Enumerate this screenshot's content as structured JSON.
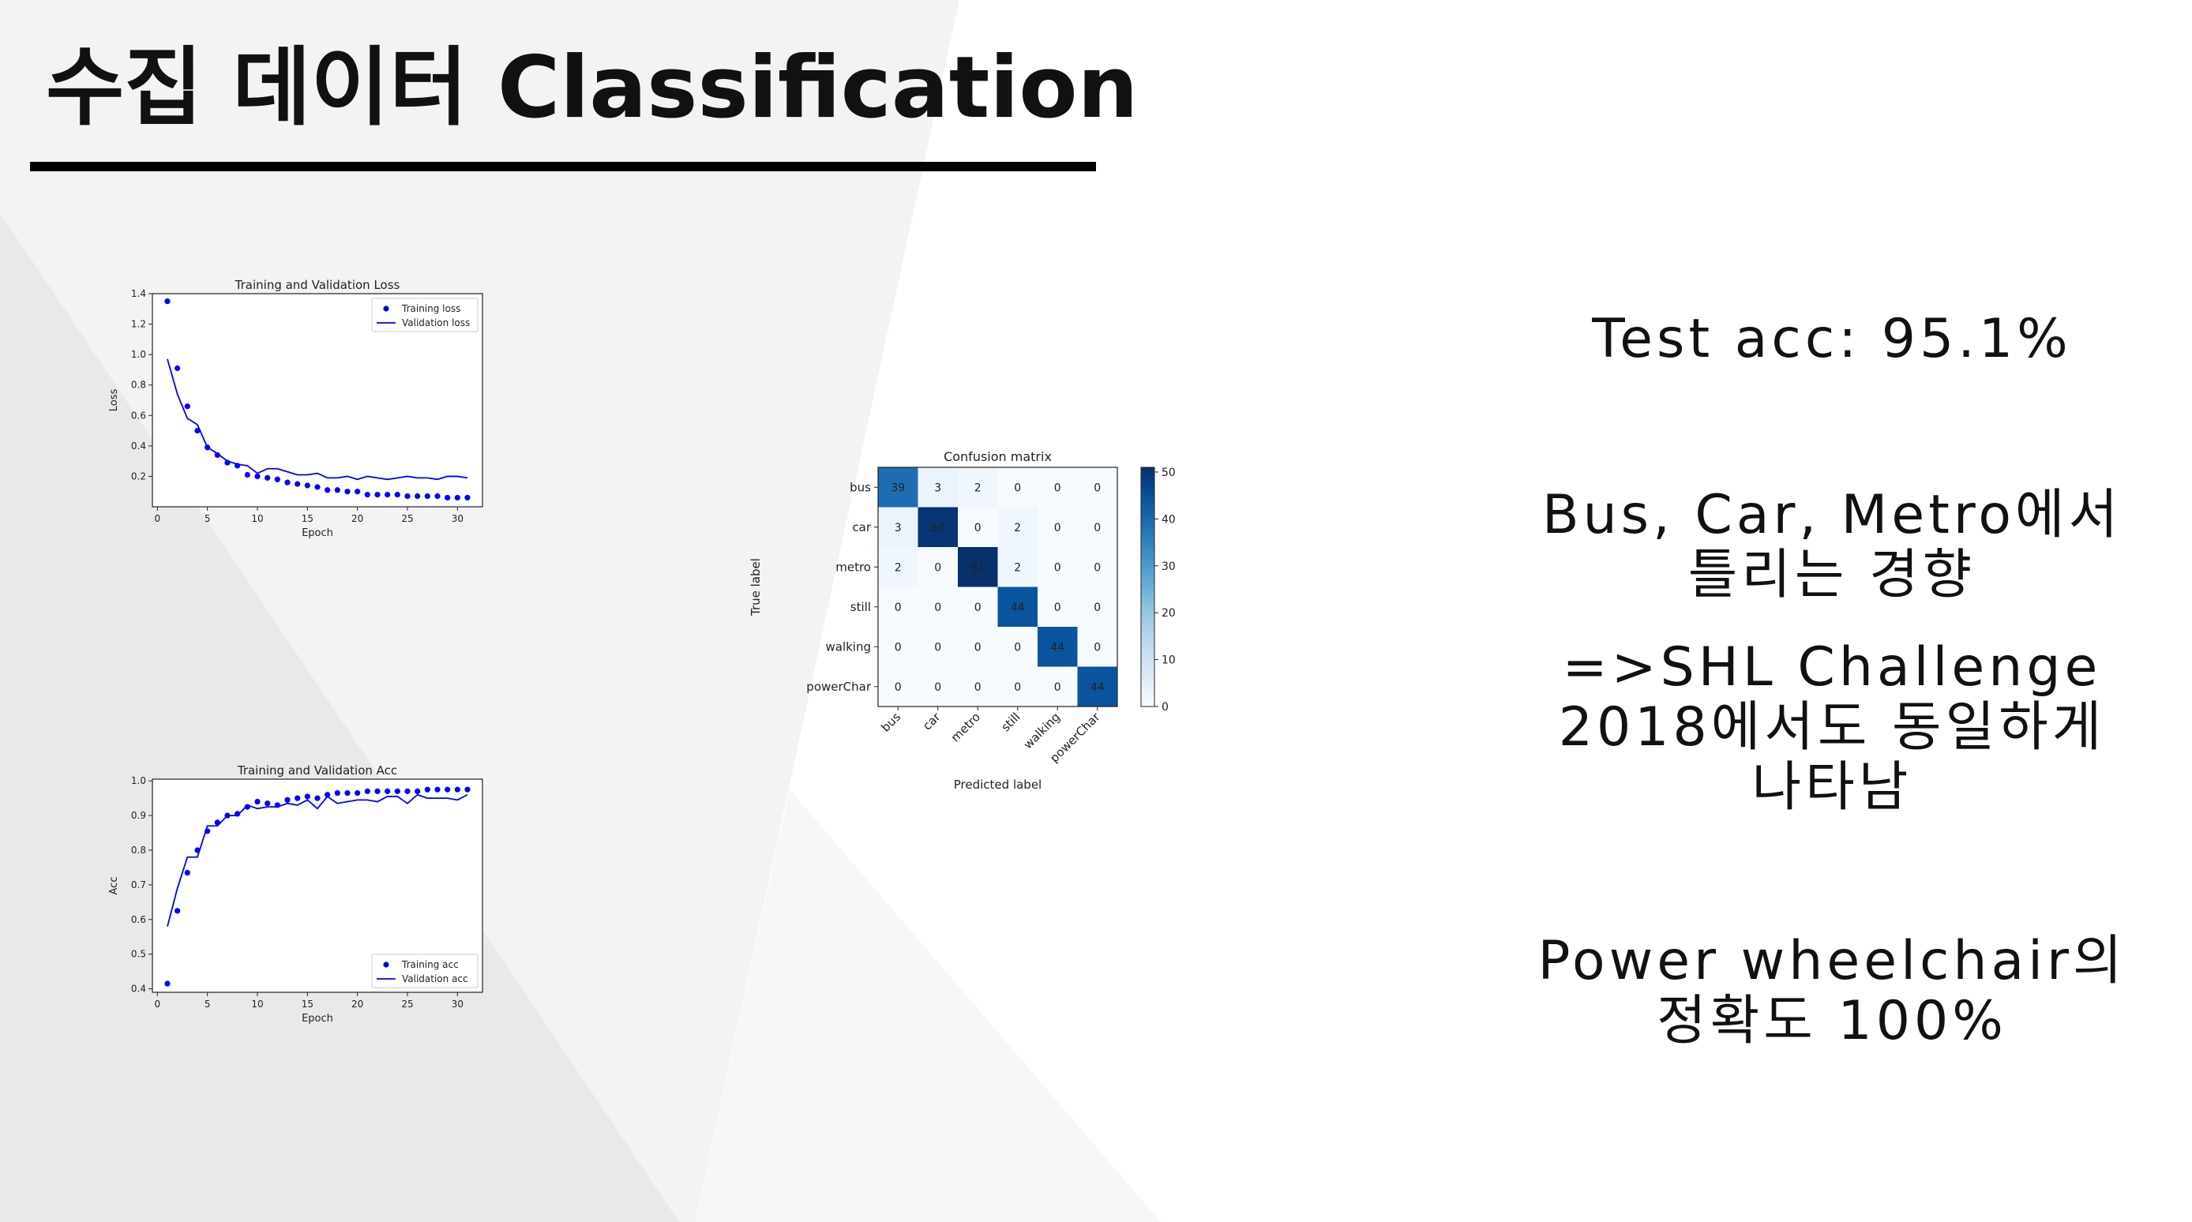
{
  "slide": {
    "title": "수집 데이터 Classification",
    "colors": {
      "background": "#ffffff",
      "panel_shade": "#ececec",
      "rule": "#000000",
      "series": "#0000ff"
    }
  },
  "notes": {
    "test_acc": "Test acc: 95.1%",
    "bus_line1": "Bus, Car, Metro에서",
    "bus_line2": "틀리는 경향",
    "shl_line1": "=>SHL Challenge",
    "shl_line2": "2018에서도 동일하게",
    "shl_line3": "나타남",
    "power_line1": "Power wheelchair의",
    "power_line2": "정확도 100%"
  },
  "chart_data": [
    {
      "type": "line",
      "title": "Training and Validation Loss",
      "xlabel": "Epoch",
      "ylabel": "Loss",
      "xlim": [
        -0.5,
        32.5
      ],
      "ylim": [
        0.0,
        1.4
      ],
      "xticks": [
        0,
        5,
        10,
        15,
        20,
        25,
        30
      ],
      "yticks": [
        0.2,
        0.4,
        0.6,
        0.8,
        1.0,
        1.2,
        1.4
      ],
      "ytick_labels": [
        "0.2",
        "0.4",
        "0.6",
        "0.8",
        "1.0",
        "1.2",
        "1.4"
      ],
      "legend_position": "top-right",
      "x": [
        1,
        2,
        3,
        4,
        5,
        6,
        7,
        8,
        9,
        10,
        11,
        12,
        13,
        14,
        15,
        16,
        17,
        18,
        19,
        20,
        21,
        22,
        23,
        24,
        25,
        26,
        27,
        28,
        29,
        30,
        31
      ],
      "series": [
        {
          "name": "Training loss",
          "style": "dots",
          "color": "#0000ff",
          "values": [
            1.35,
            0.91,
            0.66,
            0.5,
            0.39,
            0.34,
            0.29,
            0.27,
            0.21,
            0.2,
            0.19,
            0.18,
            0.16,
            0.15,
            0.14,
            0.13,
            0.11,
            0.11,
            0.1,
            0.1,
            0.08,
            0.08,
            0.08,
            0.08,
            0.07,
            0.07,
            0.07,
            0.07,
            0.06,
            0.06,
            0.06
          ]
        },
        {
          "name": "Validation loss",
          "style": "line",
          "color": "#0000ff",
          "values": [
            0.97,
            0.74,
            0.58,
            0.54,
            0.39,
            0.35,
            0.3,
            0.28,
            0.27,
            0.22,
            0.25,
            0.25,
            0.23,
            0.21,
            0.21,
            0.22,
            0.19,
            0.19,
            0.2,
            0.18,
            0.2,
            0.19,
            0.18,
            0.19,
            0.2,
            0.19,
            0.19,
            0.18,
            0.2,
            0.2,
            0.19
          ]
        }
      ]
    },
    {
      "type": "line",
      "title": "Training and Validation Acc",
      "xlabel": "Epoch",
      "ylabel": "Acc",
      "xlim": [
        -0.5,
        32.5
      ],
      "ylim": [
        0.39,
        1.005
      ],
      "xticks": [
        0,
        5,
        10,
        15,
        20,
        25,
        30
      ],
      "yticks": [
        0.4,
        0.5,
        0.6,
        0.7,
        0.8,
        0.9,
        1.0
      ],
      "ytick_labels": [
        "0.4",
        "0.5",
        "0.6",
        "0.7",
        "0.8",
        "0.9",
        "1.0"
      ],
      "legend_position": "bottom-right",
      "x": [
        1,
        2,
        3,
        4,
        5,
        6,
        7,
        8,
        9,
        10,
        11,
        12,
        13,
        14,
        15,
        16,
        17,
        18,
        19,
        20,
        21,
        22,
        23,
        24,
        25,
        26,
        27,
        28,
        29,
        30,
        31
      ],
      "series": [
        {
          "name": "Training acc",
          "style": "dots",
          "color": "#0000ff",
          "values": [
            0.415,
            0.625,
            0.735,
            0.8,
            0.855,
            0.88,
            0.9,
            0.905,
            0.925,
            0.94,
            0.935,
            0.93,
            0.945,
            0.95,
            0.955,
            0.95,
            0.96,
            0.965,
            0.965,
            0.965,
            0.97,
            0.97,
            0.97,
            0.97,
            0.97,
            0.97,
            0.975,
            0.975,
            0.975,
            0.975,
            0.975
          ]
        },
        {
          "name": "Validation acc",
          "style": "line",
          "color": "#0000ff",
          "values": [
            0.58,
            0.69,
            0.78,
            0.78,
            0.87,
            0.87,
            0.9,
            0.9,
            0.93,
            0.92,
            0.925,
            0.925,
            0.935,
            0.93,
            0.945,
            0.92,
            0.955,
            0.935,
            0.94,
            0.945,
            0.945,
            0.94,
            0.955,
            0.955,
            0.935,
            0.96,
            0.95,
            0.95,
            0.95,
            0.945,
            0.96
          ]
        }
      ]
    },
    {
      "type": "heatmap",
      "title": "Confusion matrix",
      "xlabel": "Predicted label",
      "ylabel": "True label",
      "labels": [
        "bus",
        "car",
        "metro",
        "still",
        "walking",
        "powerChar"
      ],
      "matrix": [
        [
          39,
          3,
          2,
          0,
          0,
          0
        ],
        [
          3,
          50,
          0,
          2,
          0,
          0
        ],
        [
          2,
          0,
          51,
          2,
          0,
          0
        ],
        [
          0,
          0,
          0,
          44,
          0,
          0
        ],
        [
          0,
          0,
          0,
          0,
          44,
          0
        ],
        [
          0,
          0,
          0,
          0,
          0,
          44
        ]
      ],
      "colormap": "Blues",
      "vmin": 0,
      "vmax": 51,
      "colorbar_ticks": [
        0,
        10,
        20,
        30,
        40,
        50
      ]
    }
  ]
}
